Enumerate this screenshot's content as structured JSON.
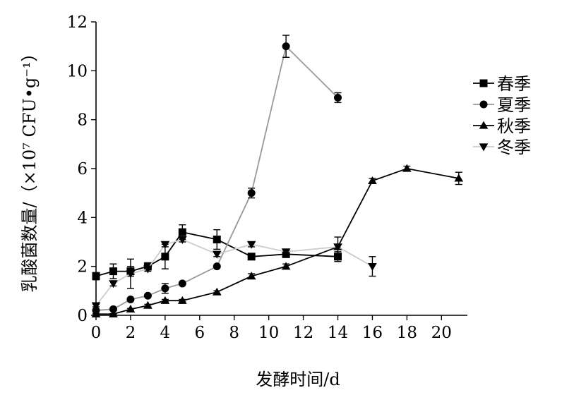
{
  "chart_data": {
    "type": "line",
    "xlabel": "发酵时间/d",
    "ylabel": "乳酸菌数量/（×10⁷ CFU•g⁻¹）",
    "xlim": [
      0,
      21.5
    ],
    "ylim": [
      0,
      12
    ],
    "xticks": [
      0,
      2,
      4,
      6,
      8,
      10,
      12,
      14,
      16,
      18,
      20
    ],
    "yticks": [
      0,
      2,
      4,
      6,
      8,
      10,
      12
    ],
    "grid": false,
    "legend_position": "right",
    "series": [
      {
        "name": "春季",
        "marker": "square",
        "color": "#000000",
        "x": [
          0,
          1,
          2,
          3,
          4,
          5,
          7,
          9,
          11,
          14
        ],
        "y": [
          1.6,
          1.8,
          1.8,
          2.0,
          2.4,
          3.4,
          3.1,
          2.4,
          2.5,
          2.4
        ],
        "err": [
          0.15,
          0.3,
          0.2,
          0.15,
          0.5,
          0.3,
          0.4,
          0.1,
          0.1,
          0.2
        ]
      },
      {
        "name": "夏季",
        "marker": "circle",
        "color": "#999999",
        "x": [
          0,
          1,
          2,
          3,
          4,
          5,
          7,
          9,
          11,
          14
        ],
        "y": [
          0.2,
          0.25,
          0.65,
          0.8,
          1.1,
          1.3,
          2.0,
          5.0,
          11.0,
          8.9
        ],
        "err": [
          0.05,
          0.05,
          0.05,
          0.05,
          0.2,
          0.05,
          0.05,
          0.2,
          0.45,
          0.2
        ]
      },
      {
        "name": "秋季",
        "marker": "triangle-up",
        "color": "#000000",
        "x": [
          0,
          1,
          2,
          3,
          4,
          5,
          7,
          9,
          11,
          14,
          16,
          18,
          21
        ],
        "y": [
          0.05,
          0.05,
          0.25,
          0.4,
          0.6,
          0.6,
          0.95,
          1.6,
          2.0,
          2.8,
          5.5,
          6.0,
          5.6
        ],
        "err": [
          0.02,
          0.02,
          0.03,
          0.05,
          0.05,
          0.05,
          0.05,
          0.1,
          0.1,
          0.4,
          0.1,
          0.1,
          0.25
        ]
      },
      {
        "name": "冬季",
        "marker": "triangle-down",
        "color": "#cccccc",
        "x": [
          0,
          1,
          2,
          3,
          4,
          5,
          7,
          9,
          11,
          14,
          16
        ],
        "y": [
          0.4,
          1.3,
          1.7,
          1.9,
          2.9,
          3.1,
          2.5,
          2.9,
          2.6,
          2.8,
          2.0
        ],
        "err": [
          0.05,
          0.1,
          0.6,
          0.1,
          0.1,
          0.1,
          0.1,
          0.1,
          0.1,
          0.1,
          0.4
        ]
      }
    ]
  }
}
